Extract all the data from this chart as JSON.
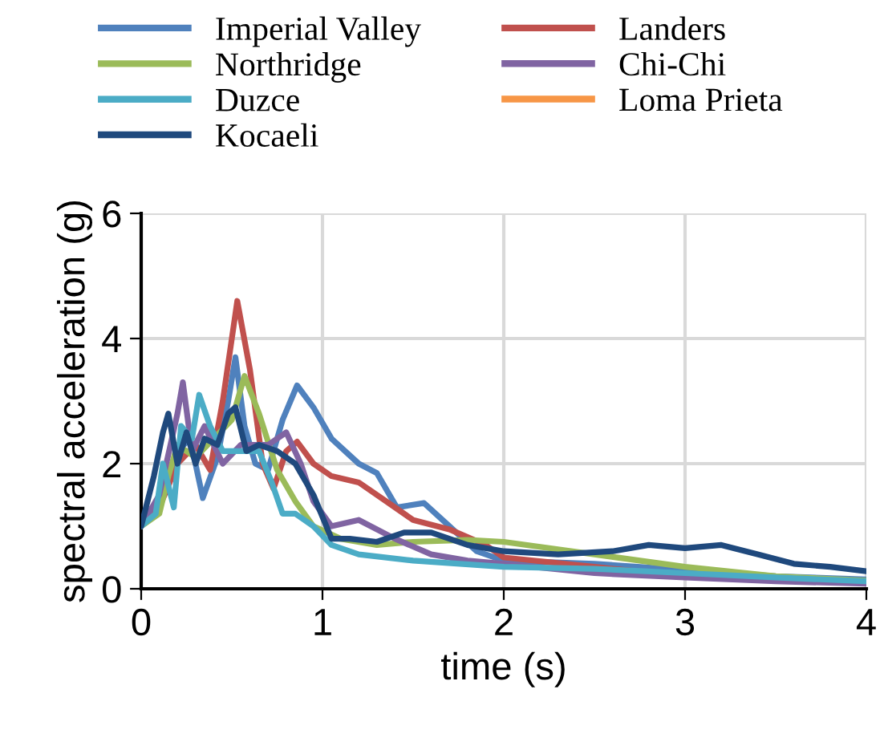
{
  "chart_data": {
    "type": "line",
    "xlabel": "time (s)",
    "ylabel": "spectral acceleration (g)",
    "xlim": [
      0,
      4
    ],
    "ylim": [
      0,
      6
    ],
    "xticks": [
      0,
      1,
      2,
      3,
      4
    ],
    "yticks": [
      0,
      2,
      4,
      6
    ],
    "grid": true,
    "legend": "top",
    "marker": "none",
    "line_style": "solid",
    "series": [
      {
        "name": "Imperial Valley",
        "color": "#4f81bd",
        "x": [
          0,
          0.1,
          0.2,
          0.27,
          0.34,
          0.42,
          0.48,
          0.52,
          0.57,
          0.63,
          0.7,
          0.78,
          0.86,
          0.95,
          1.05,
          1.2,
          1.3,
          1.41,
          1.56,
          1.7,
          1.85,
          2.0,
          2.5,
          3,
          3.5,
          4
        ],
        "values": [
          1.0,
          1.4,
          2.2,
          2.4,
          1.45,
          2.1,
          3.0,
          3.7,
          2.6,
          2.0,
          1.9,
          2.7,
          3.25,
          2.9,
          2.4,
          2.0,
          1.85,
          1.3,
          1.37,
          1.0,
          0.6,
          0.45,
          0.4,
          0.3,
          0.2,
          0.15
        ]
      },
      {
        "name": "Landers",
        "color": "#c0504d",
        "x": [
          0,
          0.1,
          0.2,
          0.3,
          0.38,
          0.45,
          0.53,
          0.6,
          0.67,
          0.73,
          0.8,
          0.86,
          0.95,
          1.05,
          1.2,
          1.35,
          1.5,
          1.7,
          1.9,
          2.0,
          2.5,
          3
        ],
        "values": [
          1.0,
          1.3,
          2.0,
          2.3,
          1.9,
          3.0,
          4.6,
          3.5,
          2.0,
          1.6,
          2.2,
          2.35,
          2.0,
          1.8,
          1.7,
          1.4,
          1.1,
          0.95,
          0.7,
          0.5,
          0.35,
          0.2
        ]
      },
      {
        "name": "Northridge",
        "color": "#9bbb59",
        "x": [
          0,
          0.1,
          0.15,
          0.2,
          0.3,
          0.4,
          0.5,
          0.57,
          0.65,
          0.75,
          0.85,
          0.95,
          1.1,
          1.3,
          1.5,
          1.8,
          2.0,
          2.5,
          3,
          3.5,
          4
        ],
        "values": [
          1.0,
          1.2,
          1.8,
          2.3,
          2.1,
          2.4,
          2.7,
          3.4,
          2.8,
          1.9,
          1.4,
          1.0,
          0.8,
          0.7,
          0.75,
          0.78,
          0.75,
          0.55,
          0.35,
          0.2,
          0.13
        ]
      },
      {
        "name": "Chi-Chi",
        "color": "#8064a2",
        "x": [
          0,
          0.1,
          0.2,
          0.23,
          0.28,
          0.35,
          0.45,
          0.55,
          0.7,
          0.8,
          0.88,
          0.95,
          1.05,
          1.2,
          1.4,
          1.6,
          1.8,
          2.0,
          2.5,
          3,
          3.5,
          4
        ],
        "values": [
          1.0,
          1.5,
          2.8,
          3.3,
          2.2,
          2.6,
          2.0,
          2.3,
          2.3,
          2.5,
          2.0,
          1.4,
          1.0,
          1.1,
          0.8,
          0.55,
          0.45,
          0.4,
          0.25,
          0.18,
          0.12,
          0.08
        ]
      },
      {
        "name": "Duzce",
        "color": "#4bacc6",
        "x": [
          0,
          0.08,
          0.12,
          0.18,
          0.22,
          0.28,
          0.32,
          0.38,
          0.45,
          0.55,
          0.65,
          0.72,
          0.78,
          0.85,
          0.95,
          1.05,
          1.2,
          1.5,
          2.0,
          2.5,
          3,
          3.5,
          4
        ],
        "values": [
          1.0,
          1.2,
          2.0,
          1.3,
          2.6,
          2.4,
          3.1,
          2.6,
          2.2,
          2.2,
          2.2,
          1.7,
          1.2,
          1.2,
          1.0,
          0.7,
          0.55,
          0.45,
          0.35,
          0.32,
          0.25,
          0.18,
          0.12
        ]
      },
      {
        "name": "Loma Prieta",
        "color": "#f79646"
      },
      {
        "name": "Kocaeli",
        "color": "#1f497d",
        "x": [
          0,
          0.07,
          0.12,
          0.15,
          0.2,
          0.25,
          0.3,
          0.35,
          0.42,
          0.48,
          0.52,
          0.58,
          0.65,
          0.75,
          0.85,
          0.95,
          1.05,
          1.15,
          1.3,
          1.45,
          1.6,
          1.8,
          2.0,
          2.3,
          2.6,
          2.8,
          3.0,
          3.2,
          3.4,
          3.6,
          3.8,
          4
        ],
        "values": [
          1.0,
          1.8,
          2.5,
          2.8,
          2.0,
          2.5,
          2.0,
          2.4,
          2.3,
          2.8,
          2.9,
          2.2,
          2.3,
          2.2,
          2.0,
          1.5,
          0.8,
          0.8,
          0.75,
          0.9,
          0.9,
          0.7,
          0.6,
          0.55,
          0.6,
          0.7,
          0.65,
          0.7,
          0.55,
          0.4,
          0.35,
          0.28
        ]
      }
    ]
  }
}
